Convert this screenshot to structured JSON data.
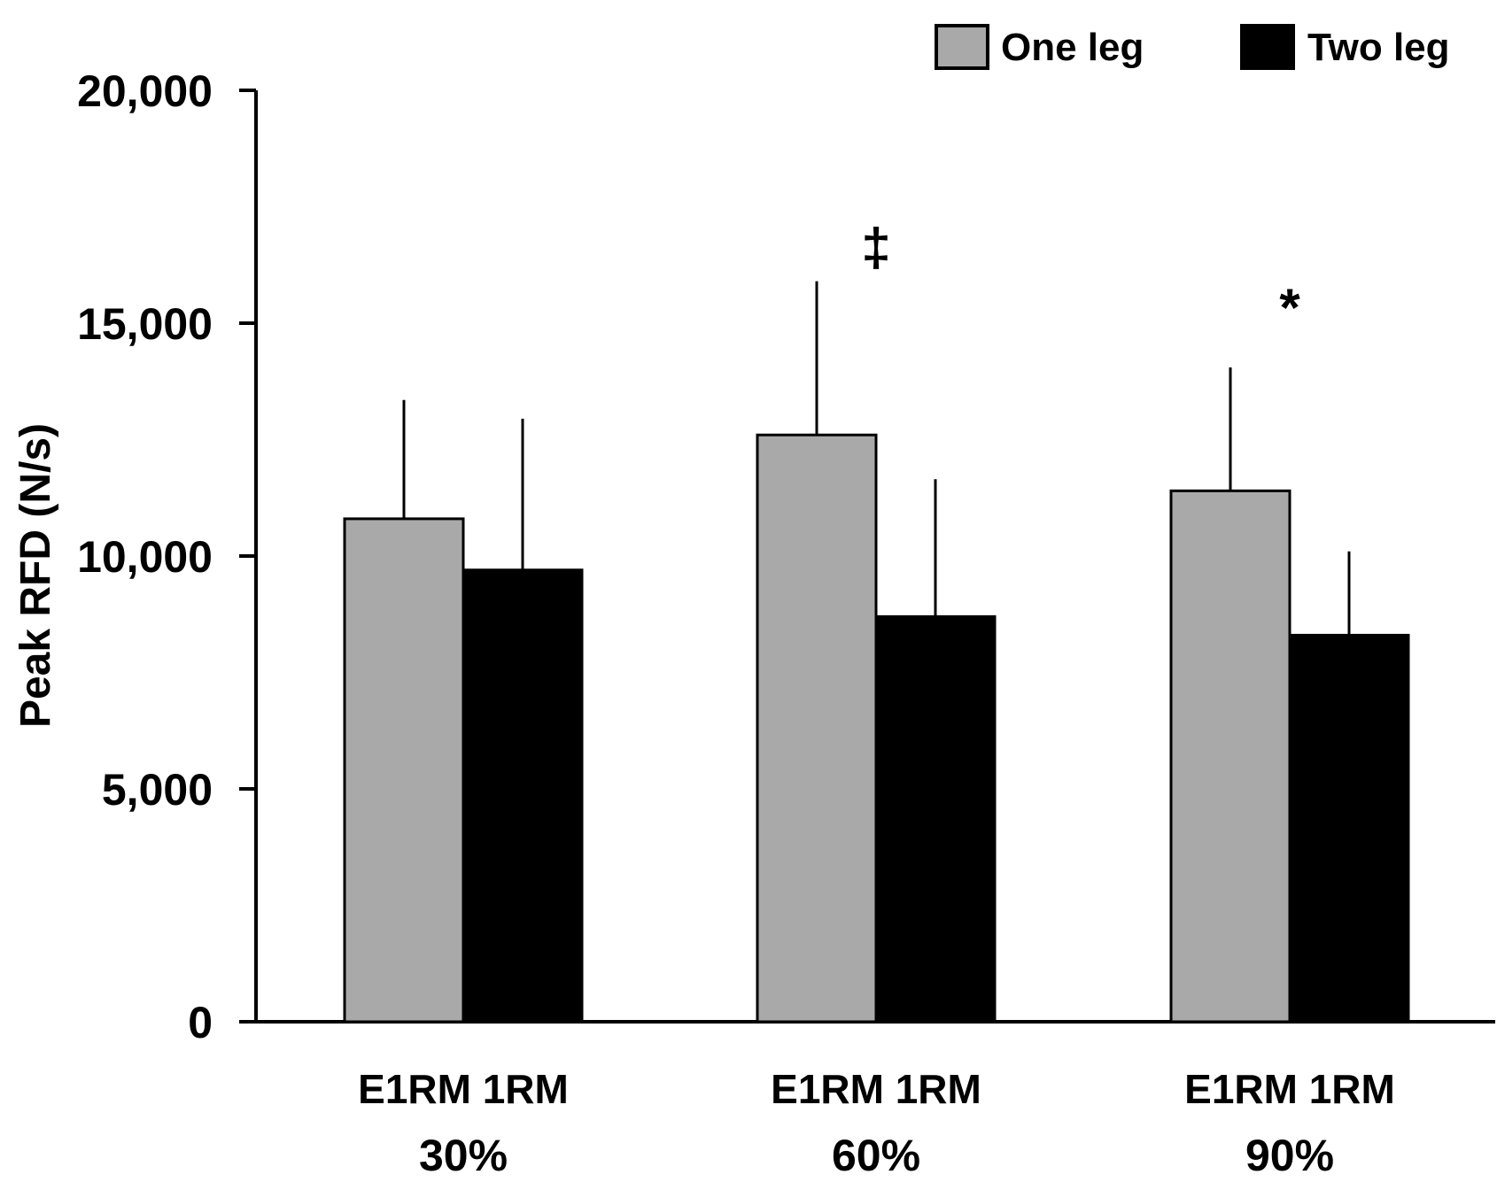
{
  "chart_data": {
    "type": "bar",
    "title": "",
    "xlabel": "",
    "ylabel": "Peak RFD (N/s)",
    "ylim": [
      0,
      20000
    ],
    "yticks": [
      0,
      5000,
      10000,
      15000,
      20000
    ],
    "ytick_labels": [
      "0",
      "5,000",
      "10,000",
      "15,000",
      "20,000"
    ],
    "categories": [
      "30%",
      "60%",
      "90%"
    ],
    "subcategory_labels": [
      "E1RM 1RM",
      "E1RM 1RM",
      "E1RM 1RM"
    ],
    "series": [
      {
        "name": "One leg",
        "color": "#a9a9a9",
        "values": [
          10800,
          12600,
          11400
        ],
        "errors": [
          2550,
          3300,
          2650
        ]
      },
      {
        "name": "Two leg",
        "color": "#000000",
        "values": [
          9700,
          8700,
          8300
        ],
        "errors": [
          3250,
          2950,
          1800
        ]
      }
    ],
    "annotations": [
      {
        "text": "‡",
        "category": "60%",
        "value": 17000
      },
      {
        "text": "*",
        "category": "90%",
        "value": 15700
      }
    ],
    "legend": "top-right",
    "grid": false
  }
}
